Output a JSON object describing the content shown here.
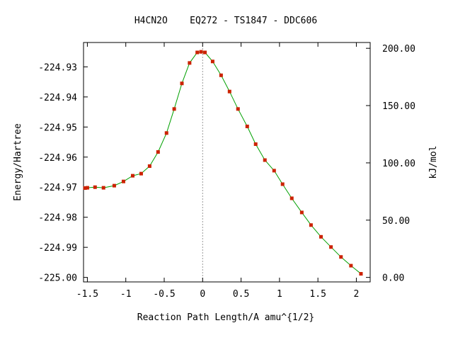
{
  "chart_data": {
    "type": "line",
    "title": "H4CN2O    EQ272 - TS1847 - DDC606",
    "xlabel": "Reaction Path Length/A amu^{1/2}",
    "ylabel": "Energy/Hartree",
    "y2label": "kJ/mol",
    "xlim": [
      -1.55,
      2.18
    ],
    "ylim": [
      -225.0015,
      -224.9219
    ],
    "x_ticks": [
      {
        "value": -1.5,
        "label": "-1.5"
      },
      {
        "value": -1,
        "label": "-1"
      },
      {
        "value": -0.5,
        "label": "-0.5"
      },
      {
        "value": 0,
        "label": "0"
      },
      {
        "value": 0.5,
        "label": "0.5"
      },
      {
        "value": 1,
        "label": "1"
      },
      {
        "value": 1.5,
        "label": "1.5"
      },
      {
        "value": 2,
        "label": "2"
      }
    ],
    "y_ticks": [
      {
        "value": -224.93,
        "label": "-224.93"
      },
      {
        "value": -224.94,
        "label": "-224.94"
      },
      {
        "value": -224.95,
        "label": "-224.95"
      },
      {
        "value": -224.96,
        "label": "-224.96"
      },
      {
        "value": -224.97,
        "label": "-224.97"
      },
      {
        "value": -224.98,
        "label": "-224.98"
      },
      {
        "value": -224.99,
        "label": "-224.99"
      },
      {
        "value": -225.0,
        "label": "-225.00"
      }
    ],
    "y2_ticks": [
      {
        "value": -225.0,
        "label": "0.00"
      },
      {
        "value": -224.98096,
        "label": "50.00"
      },
      {
        "value": -224.96192,
        "label": "100.00"
      },
      {
        "value": -224.94287,
        "label": "150.00"
      },
      {
        "value": -224.92383,
        "label": "200.00"
      }
    ],
    "vline_x": 0,
    "grid": false,
    "colors": {
      "line": "#00a000",
      "marker": "#cc2200",
      "vline": "#999999"
    },
    "series": [
      {
        "x": [
          -1.53,
          -1.5,
          -1.4,
          -1.29,
          -1.15,
          -1.03,
          -0.91,
          -0.8,
          -0.69,
          -0.58,
          -0.47,
          -0.37,
          -0.27,
          -0.17,
          -0.07,
          -0.02,
          0.03,
          0.13,
          0.24,
          0.35,
          0.46,
          0.58,
          0.69,
          0.81,
          0.93,
          1.04,
          1.16,
          1.29,
          1.41,
          1.54,
          1.67,
          1.8,
          1.93,
          2.06
        ],
        "y": [
          -224.9703,
          -224.9702,
          -224.97,
          -224.9702,
          -224.9695,
          -224.9681,
          -224.9662,
          -224.9655,
          -224.963,
          -224.9583,
          -224.952,
          -224.944,
          -224.9355,
          -224.9287,
          -224.9252,
          -224.925,
          -224.9252,
          -224.9282,
          -224.9328,
          -224.9382,
          -224.944,
          -224.9498,
          -224.9557,
          -224.961,
          -224.9645,
          -224.969,
          -224.9737,
          -224.9784,
          -224.9826,
          -224.9865,
          -224.9899,
          -224.9932,
          -224.9961,
          -224.9988
        ]
      }
    ]
  }
}
